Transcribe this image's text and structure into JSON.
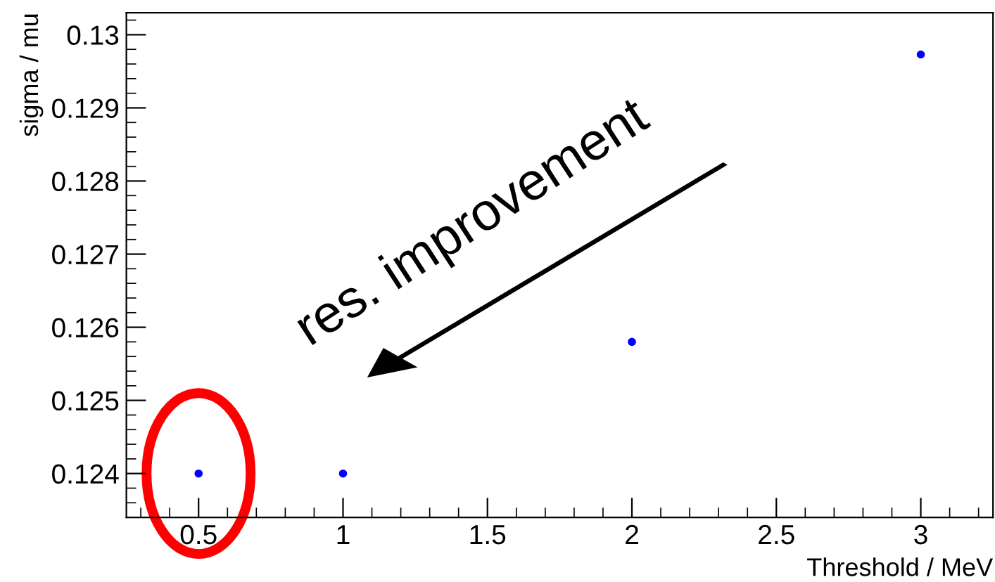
{
  "chart_data": {
    "type": "scatter",
    "xlabel": "Threshold / MeV",
    "ylabel": "sigma / mu",
    "x": [
      0.5,
      1,
      2,
      3
    ],
    "series": [
      {
        "color": "#0000ff",
        "values": [
          0.124,
          0.124,
          0.1258,
          0.12973
        ]
      }
    ],
    "marker": "circle",
    "xlim": [
      0.25,
      3.25
    ],
    "xticks": [
      {
        "value": 0.5,
        "label": "0.5"
      },
      1,
      {
        "value": 1.5,
        "label": "1.5"
      },
      2,
      {
        "value": 2.5,
        "label": "2.5"
      },
      3
    ],
    "ylim": [
      0.1234,
      0.1303
    ],
    "yticks": [
      0.124,
      0.125,
      0.126,
      0.127,
      0.128,
      0.129,
      0.13
    ],
    "grid": false,
    "annotations": [
      "res. improvement"
    ]
  }
}
